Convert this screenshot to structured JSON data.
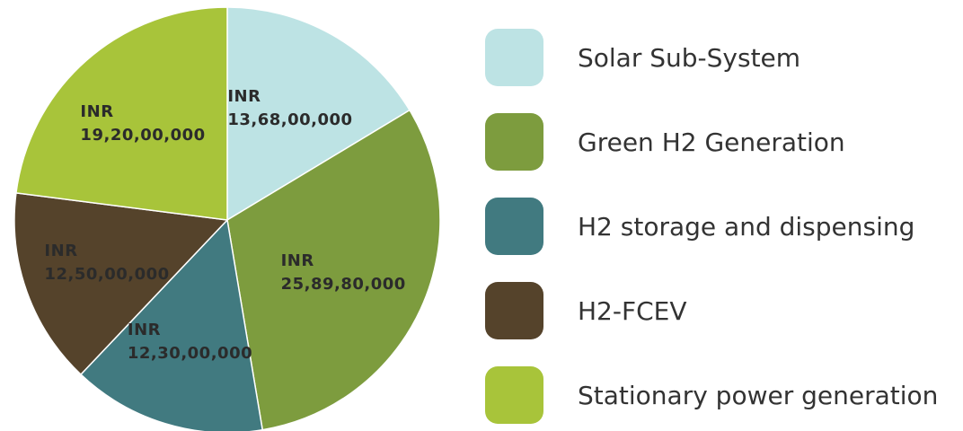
{
  "chart_data": {
    "type": "pie",
    "categories": [
      "Solar Sub-System",
      "Green H2 Generation",
      "H2 storage and dispensing",
      "H2-FCEV",
      "Stationary power generation"
    ],
    "values": [
      136800000,
      258980000,
      123000000,
      125000000,
      192000000
    ],
    "value_labels": [
      "INR\n13,68,00,000",
      "INR\n25,89,80,000",
      "INR\n12,30,00,000",
      "INR\n12,50,00,000",
      "INR\n19,20,00,000"
    ],
    "colors": [
      "#bde3e4",
      "#7d9c3e",
      "#417a80",
      "#55432b",
      "#a8c43a"
    ],
    "legend": "right"
  }
}
